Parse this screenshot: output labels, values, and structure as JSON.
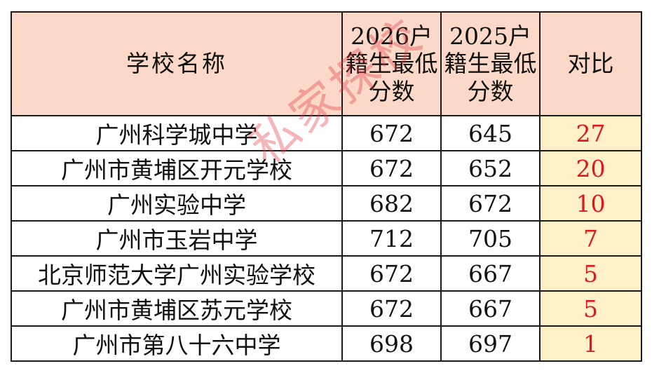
{
  "table": {
    "headers": {
      "name": "学校名称",
      "score_2026": "2026户籍生最低分数",
      "score_2025": "2025户籍生最低分数",
      "diff": "对比"
    },
    "rows": [
      {
        "name": "广州科学城中学",
        "score_2026": "672",
        "score_2025": "645",
        "diff": "27"
      },
      {
        "name": "广州市黄埔区开元学校",
        "score_2026": "672",
        "score_2025": "652",
        "diff": "20"
      },
      {
        "name": "广州实验中学",
        "score_2026": "682",
        "score_2025": "672",
        "diff": "10"
      },
      {
        "name": "广州市玉岩中学",
        "score_2026": "712",
        "score_2025": "705",
        "diff": "7"
      },
      {
        "name": "北京师范大学广州实验学校",
        "score_2026": "672",
        "score_2025": "667",
        "diff": "5"
      },
      {
        "name": "广州市黄埔区苏元学校",
        "score_2026": "672",
        "score_2025": "667",
        "diff": "5"
      },
      {
        "name": "广州市第八十六中学",
        "score_2026": "698",
        "score_2025": "697",
        "diff": "1"
      }
    ]
  },
  "watermark": "私家探校",
  "colors": {
    "header_bg": "#fbd8c8",
    "diff_bg": "#fef1c8",
    "diff_text": "#e1161c",
    "watermark": "#e63c46"
  }
}
